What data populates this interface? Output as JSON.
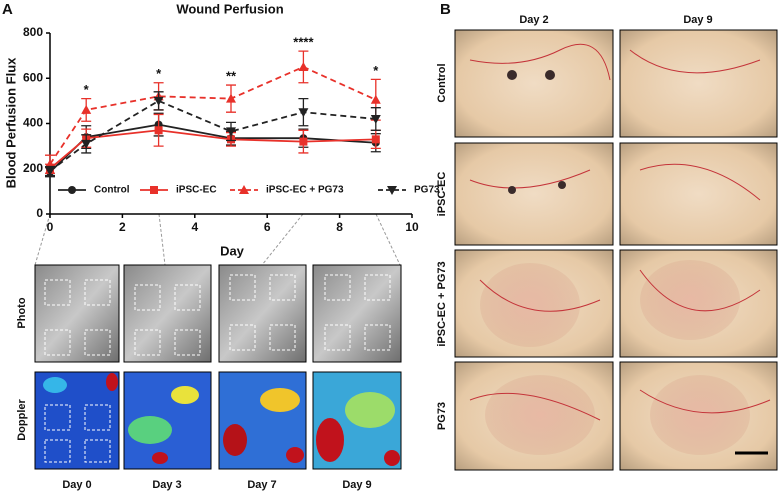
{
  "chart_data": {
    "type": "line",
    "title": "Wound Perfusion",
    "x_label": "Day",
    "y_label": "Blood Perfusion Flux",
    "x": [
      0,
      1,
      3,
      5,
      7,
      9
    ],
    "xlim": [
      0,
      10
    ],
    "xticks": [
      0,
      2,
      4,
      6,
      8,
      10
    ],
    "ylim": [
      0,
      800
    ],
    "yticks": [
      0,
      200,
      400,
      600,
      800
    ],
    "legend": "bottom",
    "series": [
      {
        "name": "Control",
        "color": "#222222",
        "dash": false,
        "marker": "circle",
        "values": [
          185,
          340,
          395,
          335,
          335,
          315
        ],
        "errors": [
          20,
          50,
          50,
          30,
          40,
          40
        ]
      },
      {
        "name": "iPSC-EC",
        "color": "#e8312a",
        "dash": false,
        "marker": "square",
        "values": [
          200,
          335,
          370,
          330,
          320,
          330
        ],
        "errors": [
          20,
          40,
          70,
          30,
          50,
          40
        ]
      },
      {
        "name": "iPSC-EC + PG73",
        "color": "#e8312a",
        "dash": true,
        "marker": "triangle-up",
        "values": [
          220,
          460,
          520,
          510,
          650,
          505
        ],
        "errors": [
          40,
          50,
          60,
          60,
          70,
          90
        ]
      },
      {
        "name": "PG73",
        "color": "#222222",
        "dash": true,
        "marker": "triangle-down",
        "values": [
          190,
          310,
          500,
          365,
          450,
          420
        ],
        "errors": [
          20,
          40,
          40,
          40,
          60,
          50
        ]
      }
    ],
    "annotations": [
      {
        "x": 1,
        "text": "*"
      },
      {
        "x": 3,
        "text": "*"
      },
      {
        "x": 5,
        "text": "**"
      },
      {
        "x": 7,
        "text": "****"
      },
      {
        "x": 9,
        "text": "*"
      }
    ]
  },
  "panel_a": {
    "label": "A",
    "rows": [
      "Photo",
      "Doppler"
    ],
    "days": [
      "Day 0",
      "Day 3",
      "Day 7",
      "Day 9"
    ]
  },
  "panel_b": {
    "label": "B",
    "columns": [
      "Day 2",
      "Day 9"
    ],
    "rows": [
      "Control",
      "iPSC-EC",
      "iPSC-EC + PG73",
      "PG73"
    ]
  }
}
